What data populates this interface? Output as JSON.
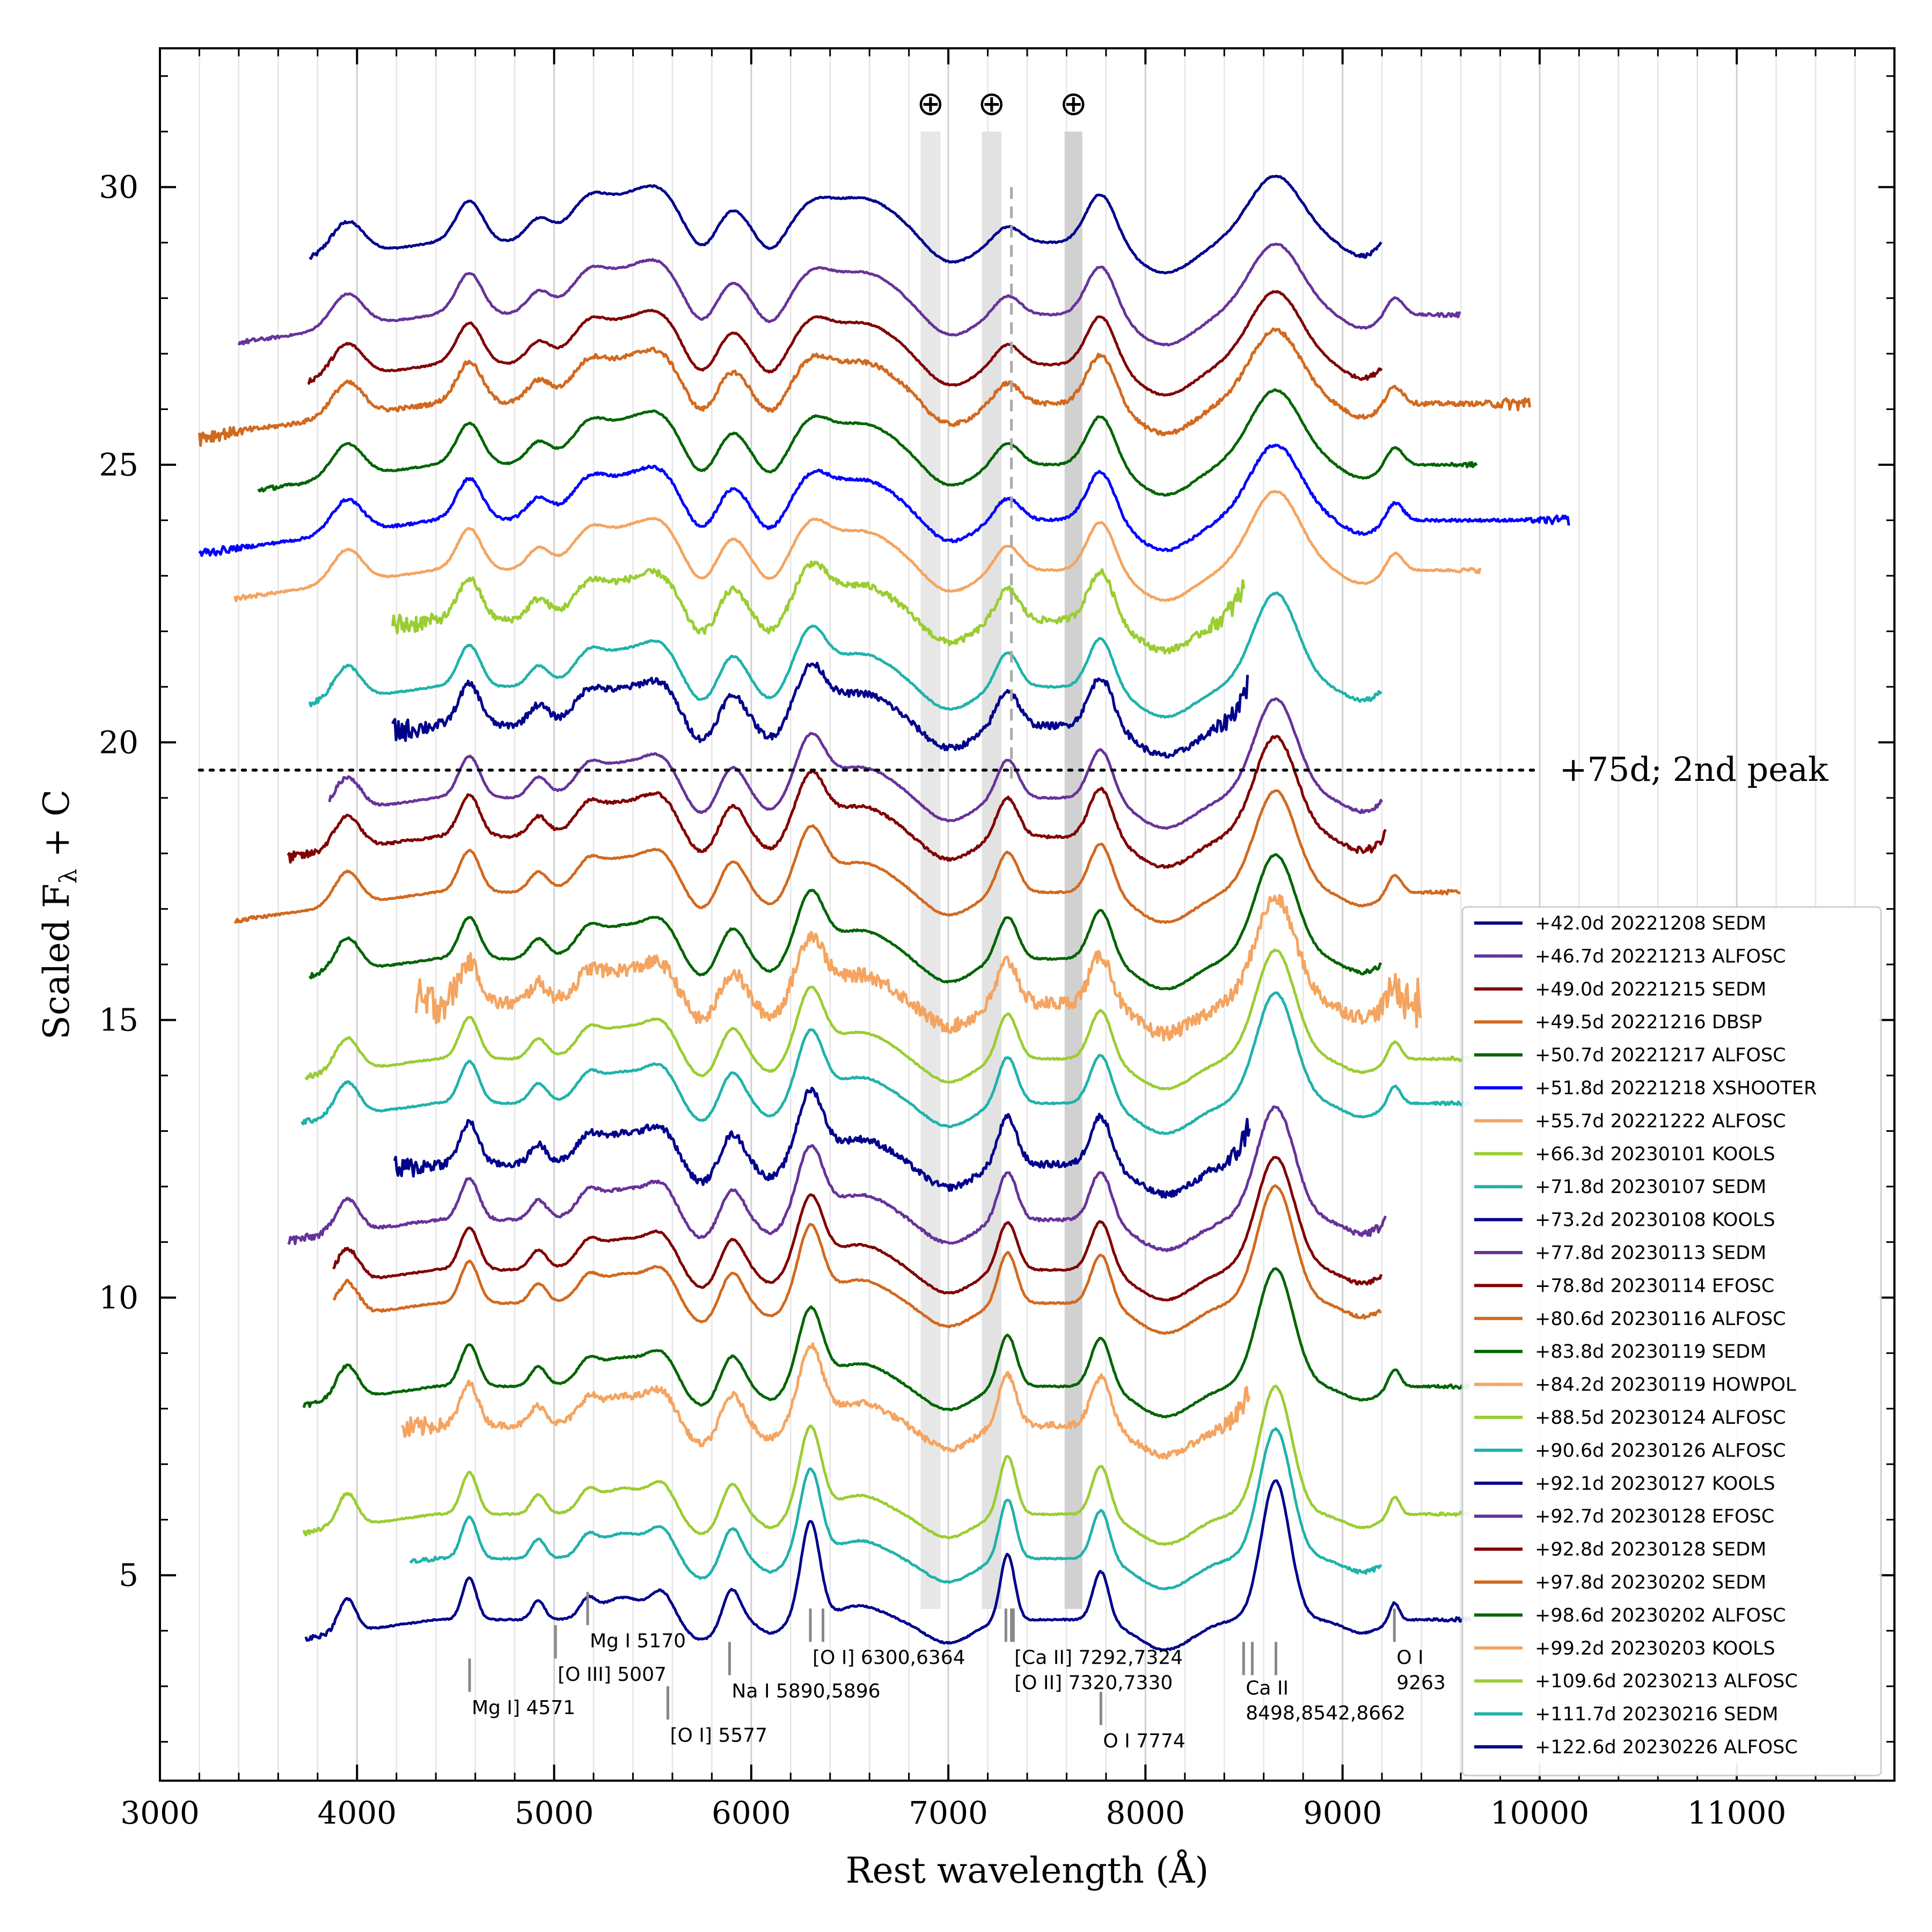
{
  "chart_data": {
    "type": "line",
    "xlabel": "Rest wavelength (Å)",
    "ylabel": "Scaled F",
    "ylabel_sub": "λ",
    "ylabel_suffix": " + C",
    "xlim": [
      3000,
      11800
    ],
    "ylim": [
      1.3,
      32.5
    ],
    "xticks": [
      "3000",
      "4000",
      "5000",
      "6000",
      "7000",
      "8000",
      "9000",
      "10000",
      "11000"
    ],
    "xtick_values": [
      3000,
      4000,
      5000,
      6000,
      7000,
      8000,
      9000,
      10000,
      11000
    ],
    "yticks": [
      "5",
      "10",
      "15",
      "20",
      "25",
      "30"
    ],
    "ytick_values": [
      5,
      10,
      15,
      20,
      25,
      30
    ],
    "grid": "vertical minor lines every 200 Å",
    "legend_position": "lower-right",
    "telluric_symbol": "⊕",
    "telluric_bands": [
      [
        6860,
        6960
      ],
      [
        7170,
        7270
      ],
      [
        7590,
        7680
      ]
    ],
    "dashed_line_x": 7320,
    "dotted_line": {
      "y": 19.5,
      "x_range": [
        3200,
        10000
      ],
      "label": "+75d; 2nd peak"
    },
    "line_ids": [
      {
        "label": "Mg I] 4571",
        "x": [
          4571
        ],
        "text_anchor_x": 4571,
        "tick_y": [
          2.9,
          3.5
        ],
        "label_y": 2.5
      },
      {
        "label": "[O III] 5007",
        "x": [
          5007
        ],
        "text_anchor_x": 5007,
        "tick_y": [
          3.5,
          4.1
        ],
        "label_y": 3.1
      },
      {
        "label": "Mg I 5170",
        "x": [
          5170
        ],
        "text_anchor_x": 5170,
        "tick_y": [
          4.1,
          4.7
        ],
        "label_y": 3.7
      },
      {
        "label": "[O I] 5577",
        "x": [
          5577
        ],
        "text_anchor_x": 5577,
        "tick_y": [
          2.4,
          3.0
        ],
        "label_y": 2.0
      },
      {
        "label": "Na I 5890,5896",
        "x": [
          5890
        ],
        "text_anchor_x": 5890,
        "tick_y": [
          3.2,
          3.8
        ],
        "label_y": 2.8
      },
      {
        "label": "[O I] 6300,6364",
        "x": [
          6300,
          6364
        ],
        "text_anchor_x": 6300,
        "tick_y": [
          3.8,
          4.4
        ],
        "label_y": 3.4
      },
      {
        "label": "[Ca II] 7292,7324",
        "x": [
          7292,
          7324
        ],
        "text_anchor_x": 7324,
        "tick_y": [
          3.8,
          4.4
        ],
        "label_y": 3.4
      },
      {
        "label": "[O II] 7320,7330",
        "x": [
          7320,
          7330
        ],
        "text_anchor_x": 7324,
        "tick_y": [
          3.8,
          4.4
        ],
        "label_y": 2.95
      },
      {
        "label": "O I 7774",
        "x": [
          7774
        ],
        "text_anchor_x": 7774,
        "tick_y": [
          2.3,
          2.9
        ],
        "label_y": 1.9
      },
      {
        "label": "Ca II",
        "x": [
          8498,
          8542,
          8662
        ],
        "text_anchor_x": 8498,
        "tick_y": [
          3.2,
          3.8
        ],
        "label_y": 2.85
      },
      {
        "label": "8498,8542,8662",
        "x": [],
        "text_anchor_x": 8498,
        "tick_y": [],
        "label_y": 2.4
      },
      {
        "label": "O I",
        "x": [
          9263
        ],
        "text_anchor_x": 9263,
        "tick_y": [
          3.8,
          4.4
        ],
        "label_y": 3.4
      },
      {
        "label": "9263",
        "x": [],
        "text_anchor_x": 9263,
        "tick_y": [],
        "label_y": 2.95
      }
    ],
    "series": [
      {
        "name": "+42.0d 20221208 SEDM",
        "color": "#00008b",
        "offset": 29.0,
        "x_range": [
          3760,
          9200
        ]
      },
      {
        "name": "+46.7d 20221213 ALFOSC",
        "color": "#663399",
        "offset": 27.7,
        "x_range": [
          3400,
          9600
        ]
      },
      {
        "name": "+49.0d 20221215 SEDM",
        "color": "#800000",
        "offset": 26.8,
        "x_range": [
          3750,
          9200
        ]
      },
      {
        "name": "+49.5d 20221216 DBSP",
        "color": "#d2691e",
        "offset": 26.1,
        "x_range": [
          3200,
          9950
        ]
      },
      {
        "name": "+50.7d 20221217 ALFOSC",
        "color": "#006400",
        "offset": 25.0,
        "x_range": [
          3500,
          9680
        ]
      },
      {
        "name": "+51.8d 20221218 XSHOOTER",
        "color": "#0000ff",
        "offset": 24.0,
        "x_range": [
          3200,
          10150
        ]
      },
      {
        "name": "+55.7d 20221222 ALFOSC",
        "color": "#f4a460",
        "offset": 23.1,
        "x_range": [
          3380,
          9700
        ]
      },
      {
        "name": "+66.3d 20230101 KOOLS",
        "color": "#9acd32",
        "offset": 22.2,
        "x_range": [
          4180,
          8500
        ]
      },
      {
        "name": "+71.8d 20230107 SEDM",
        "color": "#20b2aa",
        "offset": 21.0,
        "x_range": [
          3760,
          9200
        ]
      },
      {
        "name": "+73.2d 20230108 KOOLS",
        "color": "#00008b",
        "offset": 20.3,
        "x_range": [
          4180,
          8520
        ]
      },
      {
        "name": "+77.8d 20230113 SEDM",
        "color": "#663399",
        "offset": 19.0,
        "x_range": [
          3860,
          9200
        ]
      },
      {
        "name": "+78.8d 20230114 EFOSC",
        "color": "#800000",
        "offset": 18.3,
        "x_range": [
          3650,
          9220
        ]
      },
      {
        "name": "+80.6d 20230116 ALFOSC",
        "color": "#d2691e",
        "offset": 17.3,
        "x_range": [
          3380,
          9600
        ]
      },
      {
        "name": "+83.8d 20230119 SEDM",
        "color": "#006400",
        "offset": 16.1,
        "x_range": [
          3760,
          9200
        ]
      },
      {
        "name": "+84.2d 20230119 HOWPOL",
        "color": "#f4a460",
        "offset": 15.3,
        "x_range": [
          4300,
          9400
        ]
      },
      {
        "name": "+88.5d 20230124 ALFOSC",
        "color": "#9acd32",
        "offset": 14.3,
        "x_range": [
          3740,
          9650
        ]
      },
      {
        "name": "+90.6d 20230126 ALFOSC",
        "color": "#20b2aa",
        "offset": 13.5,
        "x_range": [
          3720,
          9650
        ]
      },
      {
        "name": "+92.1d 20230127 KOOLS",
        "color": "#00008b",
        "offset": 12.4,
        "x_range": [
          4190,
          8530
        ]
      },
      {
        "name": "+92.7d 20230128 EFOSC",
        "color": "#663399",
        "offset": 11.4,
        "x_range": [
          3650,
          9220
        ]
      },
      {
        "name": "+92.8d 20230128 SEDM",
        "color": "#800000",
        "offset": 10.5,
        "x_range": [
          3880,
          9200
        ]
      },
      {
        "name": "+97.8d 20230202 SEDM",
        "color": "#d2691e",
        "offset": 9.9,
        "x_range": [
          3880,
          9200
        ]
      },
      {
        "name": "+98.6d 20230202 ALFOSC",
        "color": "#006400",
        "offset": 8.4,
        "x_range": [
          3730,
          9650
        ]
      },
      {
        "name": "+99.2d 20230203 KOOLS",
        "color": "#f4a460",
        "offset": 7.7,
        "x_range": [
          4230,
          8530
        ]
      },
      {
        "name": "+109.6d 20230213 ALFOSC",
        "color": "#9acd32",
        "offset": 6.1,
        "x_range": [
          3730,
          9650
        ]
      },
      {
        "name": "+111.7d 20230216 SEDM",
        "color": "#20b2aa",
        "offset": 5.3,
        "x_range": [
          4270,
          9200
        ]
      },
      {
        "name": "+122.6d 20230226 ALFOSC",
        "color": "#00008b",
        "offset": 4.2,
        "x_range": [
          3740,
          9650
        ]
      }
    ]
  }
}
